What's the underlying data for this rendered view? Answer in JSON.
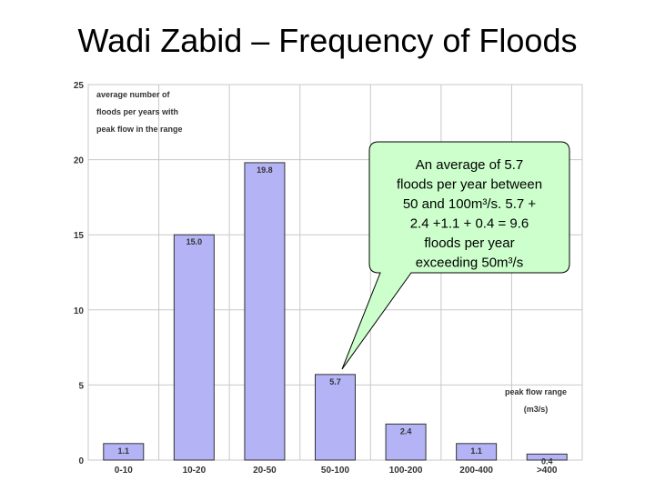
{
  "slide": {
    "title": "Wadi Zabid – Frequency of Floods"
  },
  "colors": {
    "bar_fill": "#b3b3f5",
    "bar_stroke": "#333333",
    "grid": "#c8c8c8",
    "callout_fill": "#ccffcc"
  },
  "chart_data": {
    "type": "bar",
    "categories": [
      "0-10",
      "10-20",
      "20-50",
      "50-100",
      "100-200",
      "200-400",
      ">400"
    ],
    "values": [
      1.1,
      15.0,
      19.8,
      5.7,
      2.4,
      1.1,
      0.4
    ],
    "value_labels": [
      "1.1",
      "15.0",
      "19.8",
      "5.7",
      "2.4",
      "1.1",
      "0.4"
    ],
    "ylim": [
      0,
      25
    ],
    "y_ticks": [
      0,
      5,
      10,
      15,
      20,
      25
    ],
    "grid": true,
    "y_note_lines": [
      "average number of",
      "floods per years with",
      "peak flow in the range"
    ],
    "x_note_lines": [
      "peak flow range",
      "(m3/s)"
    ]
  },
  "callout": {
    "lines": [
      "An average of 5.7",
      "floods per year between",
      "50 and 100m³/s. 5.7 +",
      "2.4 +1.1 + 0.4 = 9.6",
      "floods per year",
      "exceeding 50m³/s"
    ]
  }
}
